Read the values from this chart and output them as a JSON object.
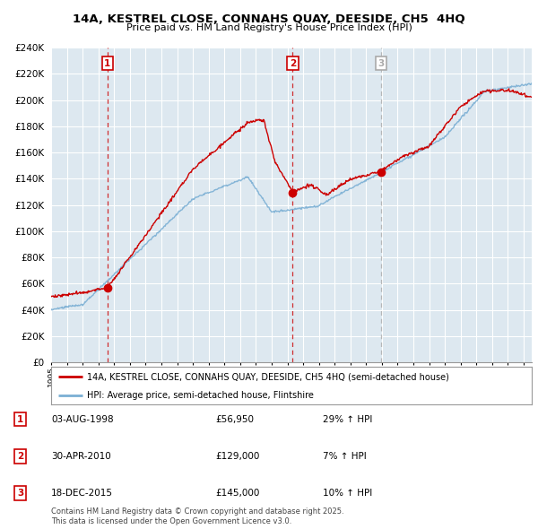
{
  "title": "14A, KESTREL CLOSE, CONNAHS QUAY, DEESIDE, CH5  4HQ",
  "subtitle": "Price paid vs. HM Land Registry's House Price Index (HPI)",
  "ylim": [
    0,
    240000
  ],
  "yticks": [
    0,
    20000,
    40000,
    60000,
    80000,
    100000,
    120000,
    140000,
    160000,
    180000,
    200000,
    220000,
    240000
  ],
  "line1_color": "#cc0000",
  "line2_color": "#7aafd4",
  "bg_fill": "#dde8f0",
  "background_color": "#ffffff",
  "grid_color": "#ffffff",
  "legend_entries": [
    "14A, KESTREL CLOSE, CONNAHS QUAY, DEESIDE, CH5 4HQ (semi-detached house)",
    "HPI: Average price, semi-detached house, Flintshire"
  ],
  "transactions": [
    {
      "num": 1,
      "date_label": "03-AUG-1998",
      "price": 56950,
      "pct": "29%",
      "direction": "↑",
      "year": 1998.58,
      "vline_color": "#cc0000",
      "vline_style": "--"
    },
    {
      "num": 2,
      "date_label": "30-APR-2010",
      "price": 129000,
      "pct": "7%",
      "direction": "↑",
      "year": 2010.33,
      "vline_color": "#cc0000",
      "vline_style": "--"
    },
    {
      "num": 3,
      "date_label": "18-DEC-2015",
      "price": 145000,
      "pct": "10%",
      "direction": "↑",
      "year": 2015.96,
      "vline_color": "#aaaaaa",
      "vline_style": "--"
    }
  ],
  "footnote": "Contains HM Land Registry data © Crown copyright and database right 2025.\nThis data is licensed under the Open Government Licence v3.0.",
  "xmin": 1995.0,
  "xmax": 2025.5
}
